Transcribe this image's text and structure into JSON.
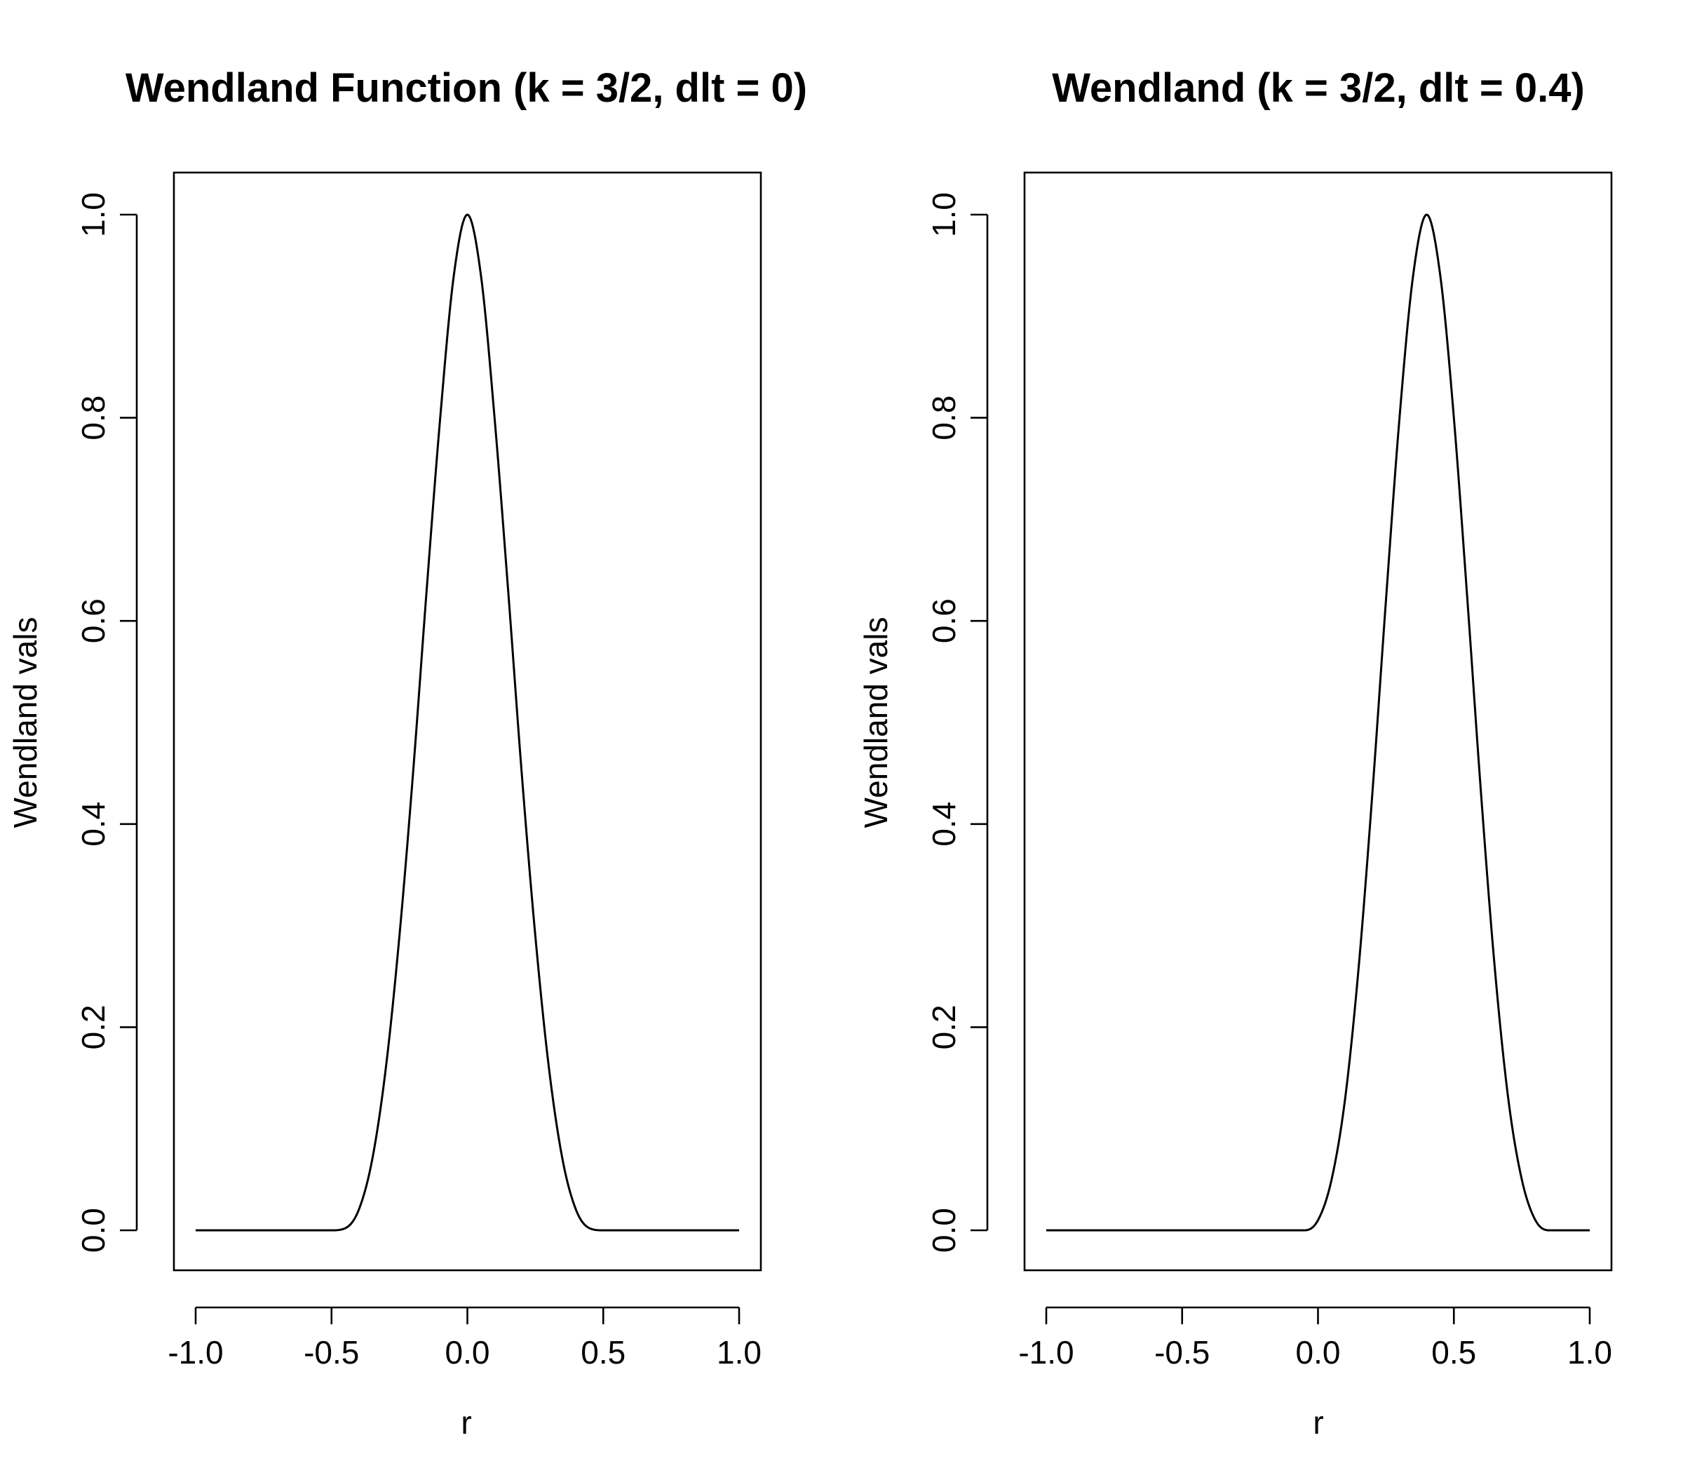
{
  "chart_data": [
    {
      "type": "line",
      "title": "Wendland Function (k = 3/2, dlt = 0)",
      "xlabel": "r",
      "ylabel": "Wendland vals",
      "xlim": [
        -1.0,
        1.0
      ],
      "ylim": [
        0.0,
        1.0
      ],
      "xticks": [
        -1.0,
        -0.5,
        0.0,
        0.5,
        1.0
      ],
      "xtick_labels": [
        "-1.0",
        "-0.5",
        "0.0",
        "0.5",
        "1.0"
      ],
      "yticks": [
        0.0,
        0.2,
        0.4,
        0.6,
        0.8,
        1.0
      ],
      "ytick_labels": [
        "0.0",
        "0.2",
        "0.4",
        "0.6",
        "0.8",
        "1.0"
      ],
      "grid": false,
      "series": [
        {
          "x": [
            -1.0,
            -0.5,
            -0.45,
            -0.4,
            -0.35,
            -0.3,
            -0.25,
            -0.2,
            -0.15,
            -0.1,
            -0.05,
            0.0,
            0.05,
            0.1,
            0.15,
            0.2,
            0.25,
            0.3,
            0.35,
            0.4,
            0.45,
            0.5,
            1.0
          ],
          "y": [
            0.0,
            0.0,
            0.002,
            0.02,
            0.07,
            0.16,
            0.29,
            0.45,
            0.63,
            0.8,
            0.94,
            1.0,
            0.94,
            0.8,
            0.63,
            0.45,
            0.29,
            0.16,
            0.07,
            0.02,
            0.002,
            0.0,
            0.0
          ]
        }
      ]
    },
    {
      "type": "line",
      "title": "Wendland (k = 3/2, dlt = 0.4)",
      "xlabel": "r",
      "ylabel": "Wendland vals",
      "xlim": [
        -1.0,
        1.0
      ],
      "ylim": [
        0.0,
        1.0
      ],
      "xticks": [
        -1.0,
        -0.5,
        0.0,
        0.5,
        1.0
      ],
      "xtick_labels": [
        "-1.0",
        "-0.5",
        "0.0",
        "0.5",
        "1.0"
      ],
      "yticks": [
        0.0,
        0.2,
        0.4,
        0.6,
        0.8,
        1.0
      ],
      "ytick_labels": [
        "0.0",
        "0.2",
        "0.4",
        "0.6",
        "0.8",
        "1.0"
      ],
      "grid": false,
      "series": [
        {
          "x": [
            -1.0,
            -0.05,
            0.0,
            0.05,
            0.1,
            0.15,
            0.2,
            0.25,
            0.3,
            0.35,
            0.4,
            0.45,
            0.5,
            0.55,
            0.6,
            0.65,
            0.7,
            0.75,
            0.8,
            0.85,
            1.0
          ],
          "y": [
            0.0,
            0.0,
            0.01,
            0.05,
            0.13,
            0.26,
            0.43,
            0.62,
            0.8,
            0.94,
            1.0,
            0.94,
            0.8,
            0.62,
            0.43,
            0.26,
            0.13,
            0.05,
            0.01,
            0.0,
            0.0
          ]
        }
      ]
    }
  ]
}
